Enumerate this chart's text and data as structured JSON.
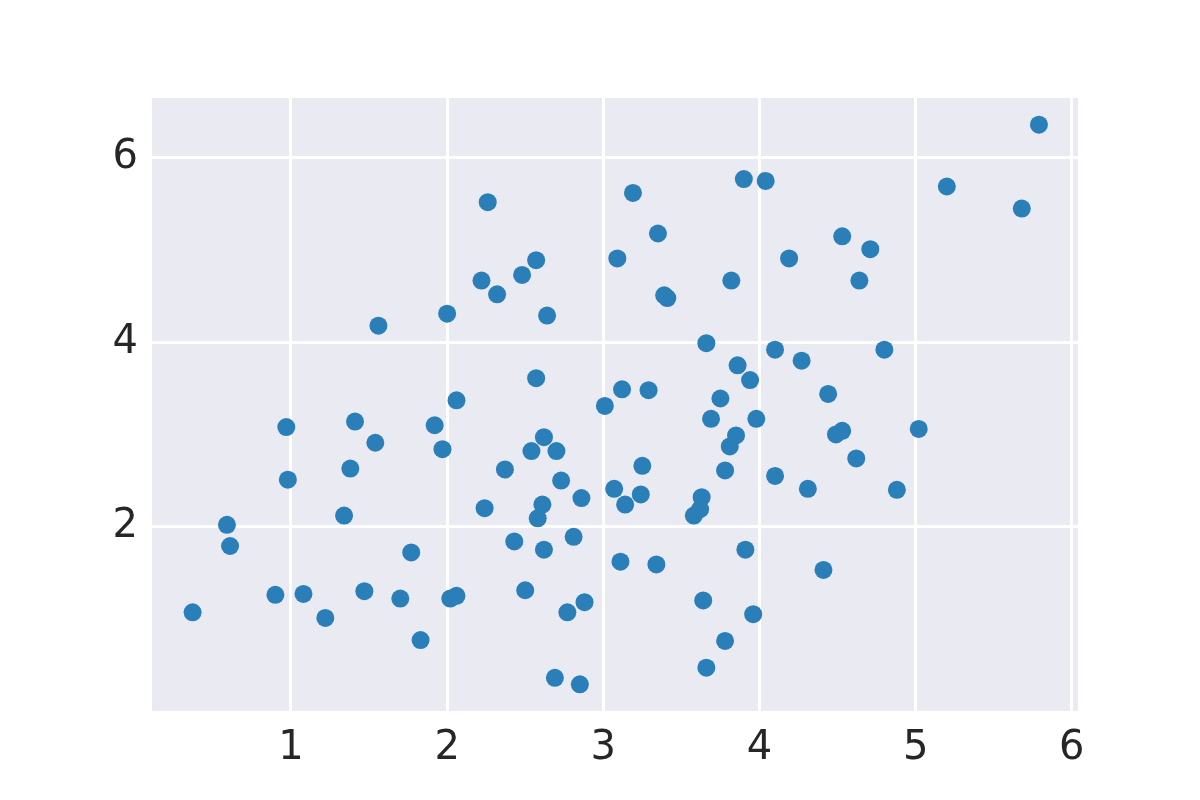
{
  "chart_data": {
    "type": "scatter",
    "xlim": [
      0.11,
      6.04
    ],
    "ylim": [
      0,
      6.65
    ],
    "xticks": [
      1,
      2,
      3,
      4,
      5,
      6
    ],
    "yticks": [
      2,
      4,
      6
    ],
    "grid": true,
    "marker": "circle",
    "legend": false,
    "series": [
      {
        "color": "#2a7fb8",
        "x": [
          0.37,
          0.59,
          0.61,
          0.9,
          0.97,
          0.98,
          1.08,
          1.22,
          1.34,
          1.38,
          1.41,
          1.47,
          1.54,
          1.56,
          1.7,
          1.77,
          1.83,
          1.92,
          1.97,
          2.0,
          2.02,
          2.06,
          2.06,
          2.22,
          2.24,
          2.26,
          2.32,
          2.37,
          2.43,
          2.48,
          2.5,
          2.54,
          2.57,
          2.57,
          2.58,
          2.61,
          2.62,
          2.62,
          2.64,
          2.69,
          2.7,
          2.73,
          2.77,
          2.81,
          2.85,
          2.86,
          2.88,
          3.01,
          3.07,
          3.09,
          3.11,
          3.12,
          3.14,
          3.19,
          3.24,
          3.25,
          3.29,
          3.34,
          3.35,
          3.39,
          3.41,
          3.58,
          3.62,
          3.63,
          3.64,
          3.66,
          3.66,
          3.69,
          3.75,
          3.78,
          3.78,
          3.81,
          3.82,
          3.85,
          3.86,
          3.9,
          3.91,
          3.94,
          3.96,
          3.98,
          4.04,
          4.1,
          4.1,
          4.19,
          4.27,
          4.31,
          4.41,
          4.44,
          4.49,
          4.53,
          4.53,
          4.62,
          4.64,
          4.71,
          4.8,
          4.88,
          5.02,
          5.2,
          5.68,
          5.79
        ],
        "values": [
          1.07,
          2.02,
          1.79,
          1.26,
          3.08,
          2.51,
          1.27,
          1.01,
          2.12,
          2.63,
          3.14,
          1.3,
          2.91,
          4.18,
          1.22,
          1.72,
          0.77,
          3.1,
          2.84,
          4.31,
          1.22,
          1.25,
          3.37,
          4.67,
          2.2,
          5.52,
          4.52,
          2.62,
          1.84,
          4.73,
          1.31,
          2.82,
          4.89,
          3.61,
          2.09,
          2.24,
          2.97,
          1.75,
          4.29,
          0.36,
          2.82,
          2.5,
          1.07,
          1.89,
          0.29,
          2.31,
          1.18,
          3.31,
          2.41,
          4.91,
          1.62,
          3.49,
          2.24,
          5.62,
          2.35,
          2.66,
          3.48,
          1.59,
          5.18,
          4.51,
          4.48,
          2.12,
          2.19,
          2.32,
          1.2,
          3.99,
          0.47,
          3.17,
          3.39,
          2.61,
          0.76,
          2.87,
          4.67,
          2.99,
          3.75,
          5.77,
          1.75,
          3.59,
          1.05,
          3.17,
          5.75,
          3.92,
          2.55,
          4.91,
          3.8,
          2.41,
          1.53,
          3.44,
          3.0,
          3.04,
          5.15,
          2.74,
          4.67,
          5.01,
          3.92,
          2.4,
          3.06,
          5.69,
          5.45,
          6.36
        ]
      }
    ]
  }
}
